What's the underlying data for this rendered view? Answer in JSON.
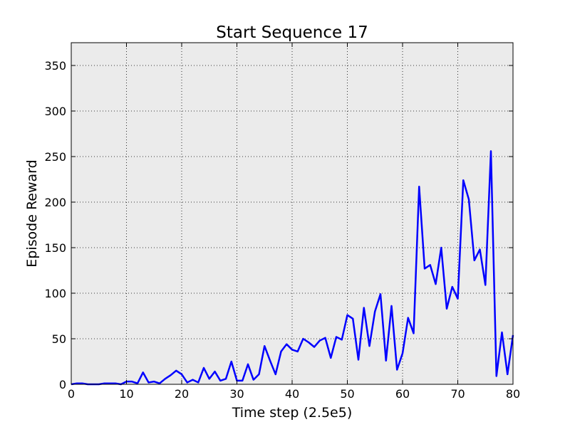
{
  "chart_data": {
    "type": "line",
    "title": "Start Sequence 17",
    "xlabel": "Time step (2.5e5)",
    "ylabel": "Episode Reward",
    "xlim": [
      0,
      80
    ],
    "ylim": [
      0,
      375
    ],
    "xticks": [
      0,
      10,
      20,
      30,
      40,
      50,
      60,
      70,
      80
    ],
    "yticks": [
      0,
      50,
      100,
      150,
      200,
      250,
      300,
      350
    ],
    "grid": true,
    "legend": "none",
    "plot_background": "#ebebeb",
    "line_color": "#0000ff",
    "series": [
      {
        "x": [
          0,
          1,
          2,
          3,
          4,
          5,
          6,
          7,
          8,
          9,
          10,
          11,
          12,
          13,
          14,
          15,
          16,
          17,
          18,
          19,
          20,
          21,
          22,
          23,
          24,
          25,
          26,
          27,
          28,
          29,
          30,
          31,
          32,
          33,
          34,
          35,
          36,
          37,
          38,
          39,
          40,
          41,
          42,
          43,
          44,
          45,
          46,
          47,
          48,
          49,
          50,
          51,
          52,
          53,
          54,
          55,
          56,
          57,
          58,
          59,
          60,
          61,
          62,
          63,
          64,
          65,
          66,
          67,
          68,
          69,
          70,
          71,
          72,
          73,
          74,
          75,
          76,
          77,
          78,
          79,
          80
        ],
        "values": [
          0,
          1,
          1,
          0,
          0,
          0,
          1,
          1,
          1,
          0,
          3,
          3,
          1,
          13,
          2,
          3,
          1,
          6,
          10,
          15,
          11,
          2,
          5,
          2,
          18,
          6,
          14,
          4,
          6,
          25,
          4,
          4,
          22,
          5,
          11,
          42,
          26,
          11,
          36,
          44,
          38,
          36,
          50,
          46,
          41,
          48,
          51,
          29,
          52,
          49,
          76,
          72,
          27,
          84,
          42,
          80,
          99,
          26,
          86,
          16,
          34,
          73,
          56,
          217,
          127,
          131,
          110,
          150,
          83,
          107,
          94,
          224,
          203,
          136,
          148,
          109,
          256,
          9,
          57,
          11,
          54
        ]
      }
    ]
  }
}
